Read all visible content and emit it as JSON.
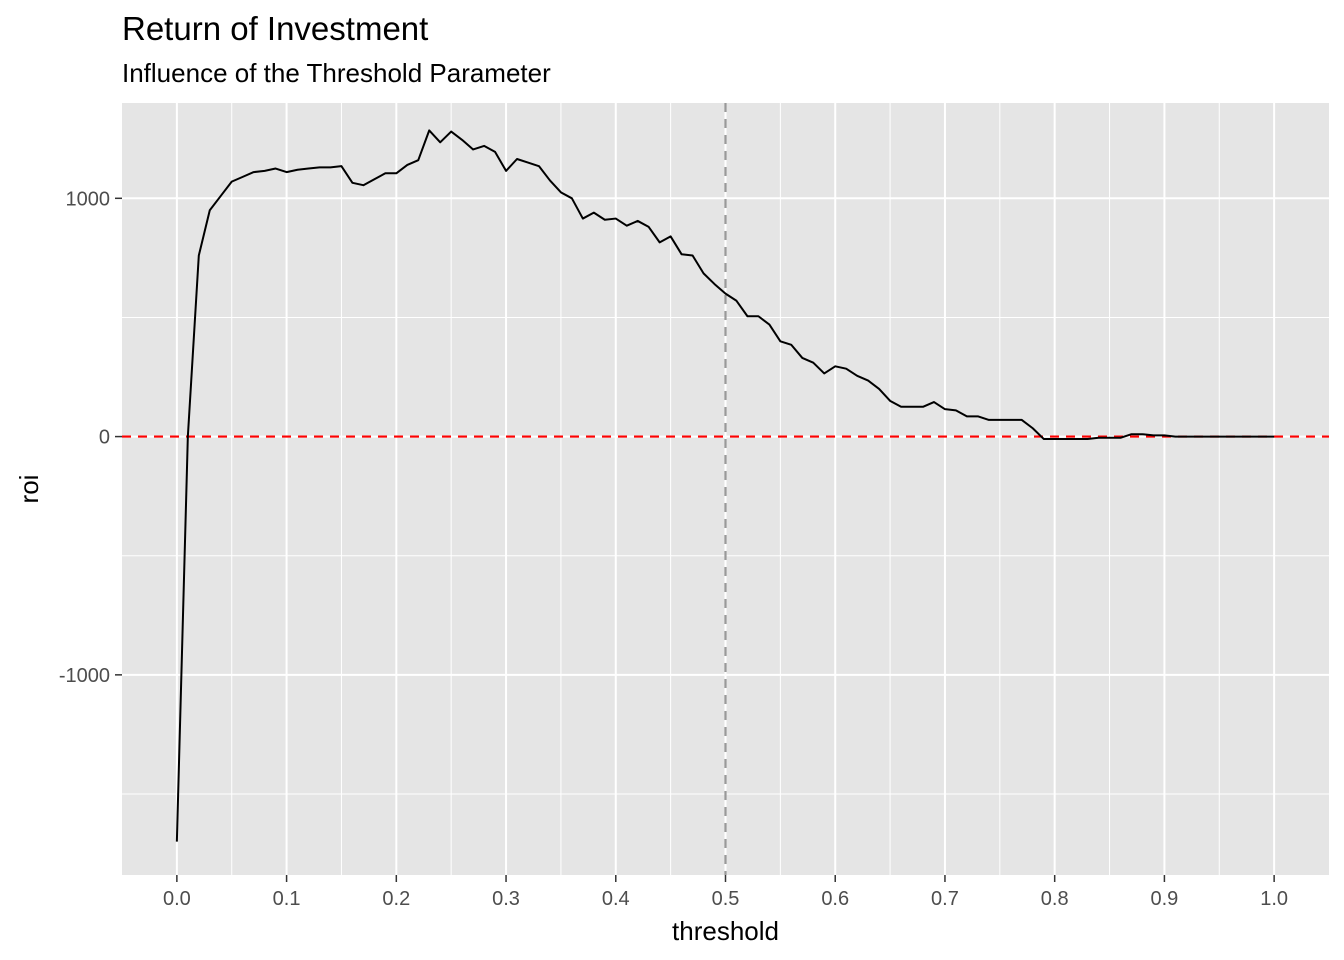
{
  "chart_data": {
    "type": "line",
    "title": "Return of Investment",
    "subtitle": "Influence of the Threshold Parameter",
    "xlabel": "threshold",
    "ylabel": "roi",
    "xlim": [
      -0.05,
      1.05
    ],
    "ylim": [
      -1840,
      1400
    ],
    "x_ticks": [
      0.0,
      0.1,
      0.2,
      0.3,
      0.4,
      0.5,
      0.6,
      0.7,
      0.8,
      0.9,
      1.0
    ],
    "x_tick_labels": [
      "0.0",
      "0.1",
      "0.2",
      "0.3",
      "0.4",
      "0.5",
      "0.6",
      "0.7",
      "0.8",
      "0.9",
      "1.0"
    ],
    "y_ticks": [
      -1000,
      0,
      1000
    ],
    "y_tick_labels": [
      "-1000",
      "0",
      "1000"
    ],
    "grid": true,
    "background": "#e5e5e5",
    "grid_color": "#ffffff",
    "line_color": "#000000",
    "reference_lines": [
      {
        "orientation": "horizontal",
        "value": 0,
        "color": "#ff0000",
        "style": "dashed"
      },
      {
        "orientation": "vertical",
        "value": 0.5,
        "color": "#999999",
        "style": "dashed"
      }
    ],
    "series": [
      {
        "x": [
          0.0,
          0.01,
          0.02,
          0.03,
          0.04,
          0.05,
          0.06,
          0.07,
          0.08,
          0.09,
          0.1,
          0.11,
          0.12,
          0.13,
          0.14,
          0.15,
          0.16,
          0.17,
          0.18,
          0.19,
          0.2,
          0.21,
          0.22,
          0.23,
          0.24,
          0.25,
          0.26,
          0.27,
          0.28,
          0.29,
          0.3,
          0.31,
          0.32,
          0.33,
          0.34,
          0.35,
          0.36,
          0.37,
          0.38,
          0.39,
          0.4,
          0.41,
          0.42,
          0.43,
          0.44,
          0.45,
          0.46,
          0.47,
          0.48,
          0.49,
          0.5,
          0.51,
          0.52,
          0.53,
          0.54,
          0.55,
          0.56,
          0.57,
          0.58,
          0.59,
          0.6,
          0.61,
          0.62,
          0.63,
          0.64,
          0.65,
          0.66,
          0.67,
          0.68,
          0.69,
          0.7,
          0.71,
          0.72,
          0.73,
          0.74,
          0.75,
          0.76,
          0.77,
          0.78,
          0.79,
          0.8,
          0.81,
          0.82,
          0.83,
          0.84,
          0.85,
          0.86,
          0.87,
          0.88,
          0.89,
          0.9,
          0.91,
          0.92,
          0.93,
          0.94,
          0.95,
          0.96,
          0.97,
          0.98,
          0.99,
          1.0
        ],
        "values": [
          -1700,
          0,
          760,
          950,
          1010,
          1070,
          1090,
          1110,
          1115,
          1125,
          1110,
          1120,
          1125,
          1130,
          1130,
          1135,
          1065,
          1055,
          1080,
          1105,
          1105,
          1140,
          1160,
          1285,
          1235,
          1280,
          1245,
          1205,
          1220,
          1195,
          1115,
          1165,
          1150,
          1135,
          1075,
          1025,
          1000,
          915,
          940,
          910,
          915,
          885,
          905,
          880,
          815,
          840,
          765,
          760,
          685,
          640,
          600,
          570,
          505,
          505,
          470,
          400,
          385,
          330,
          310,
          265,
          295,
          285,
          255,
          235,
          200,
          150,
          125,
          125,
          125,
          145,
          115,
          110,
          85,
          85,
          70,
          70,
          70,
          70,
          35,
          -10,
          -10,
          -10,
          -10,
          -10,
          -5,
          -5,
          -5,
          10,
          10,
          5,
          5,
          0,
          0,
          0,
          0,
          0,
          0,
          0,
          0,
          0,
          0
        ]
      }
    ]
  }
}
